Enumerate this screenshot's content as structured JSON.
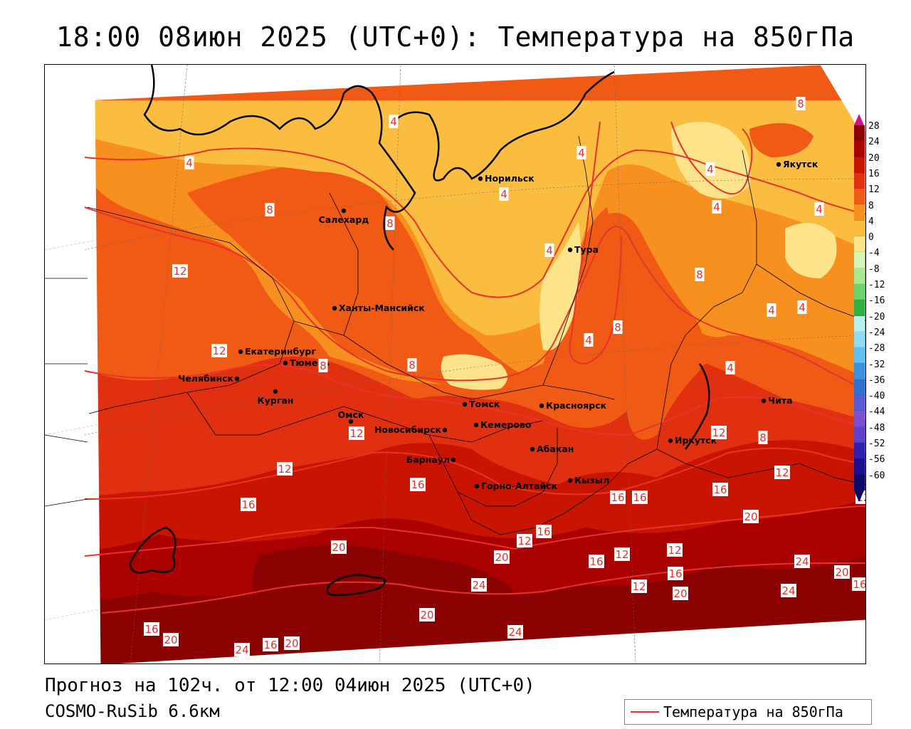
{
  "header": {
    "title": "18:00 08июн 2025 (UTC+0): Температура на 850гПа"
  },
  "footer": {
    "forecast": "Прогноз на 102ч. от 12:00 04июн 2025 (UTC+0)",
    "model": "COSMO-RuSib 6.6км",
    "legend_label": "Температура на 850гПа"
  },
  "colorbar": {
    "labels": [
      "28",
      "24",
      "20",
      "16",
      "12",
      "8",
      "4",
      "0",
      "-4",
      "-8",
      "-12",
      "-16",
      "-20",
      "-24",
      "-28",
      "-32",
      "-36",
      "-40",
      "-44",
      "-48",
      "-52",
      "-56",
      "-60"
    ],
    "colors": [
      "#8b0000",
      "#aa0000",
      "#c81400",
      "#e03010",
      "#f05a14",
      "#f7901e",
      "#fbbd40",
      "#fde48a",
      "#d4f5b4",
      "#a8e890",
      "#6cd46c",
      "#30b040",
      "#b8f0f0",
      "#90dcf0",
      "#60c0f0",
      "#4090e0",
      "#3070d0",
      "#5a5ad8",
      "#7a50d0",
      "#6040c8",
      "#3020b0",
      "#1a1090",
      "#10086a"
    ],
    "top_color": "#d0108a",
    "bottom_color": "#0a0060"
  },
  "map": {
    "cities": [
      {
        "name": "Норильск"
      },
      {
        "name": "Якутск"
      },
      {
        "name": "Салехард"
      },
      {
        "name": "Тура"
      },
      {
        "name": "Ханты-Мансийск"
      },
      {
        "name": "Екатеринбург"
      },
      {
        "name": "Тюмень"
      },
      {
        "name": "Челябинск"
      },
      {
        "name": "Курган"
      },
      {
        "name": "Омск"
      },
      {
        "name": "Томск"
      },
      {
        "name": "Красноярск"
      },
      {
        "name": "Новосибирск"
      },
      {
        "name": "Кемерово"
      },
      {
        "name": "Абакан"
      },
      {
        "name": "Барнаул"
      },
      {
        "name": "Иркутск"
      },
      {
        "name": "Чита"
      },
      {
        "name": "Горно-Алтайск"
      },
      {
        "name": "Кызыл"
      }
    ],
    "isoline_labels": [
      "8",
      "4",
      "4",
      "4",
      "4",
      "4",
      "4",
      "4",
      "4",
      "4",
      "4",
      "4",
      "4",
      "8",
      "8",
      "8",
      "8",
      "8",
      "8",
      "8",
      "12",
      "12",
      "12",
      "12",
      "12",
      "12",
      "12",
      "12",
      "12",
      "16",
      "16",
      "16",
      "16",
      "16",
      "16",
      "16",
      "16",
      "16",
      "16",
      "16",
      "20",
      "20",
      "20",
      "20",
      "20",
      "20",
      "20",
      "20",
      "24",
      "24",
      "24",
      "24",
      "24",
      "12",
      "12"
    ]
  }
}
